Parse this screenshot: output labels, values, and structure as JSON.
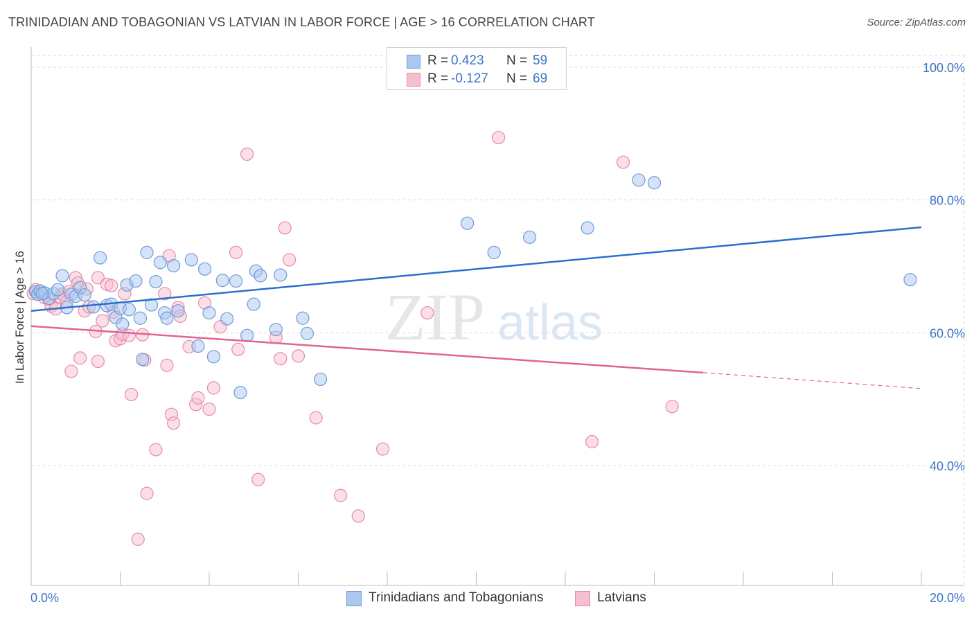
{
  "title": "TRINIDADIAN AND TOBAGONIAN VS LATVIAN IN LABOR FORCE | AGE > 16 CORRELATION CHART",
  "source": "Source: ZipAtlas.com",
  "watermark": {
    "zip": "ZIP",
    "atlas": "atlas"
  },
  "legend_top": {
    "rows": [
      {
        "r_key": "R =",
        "r_value": "0.423",
        "n_key": "N =",
        "n_value": "59"
      },
      {
        "r_key": "R =",
        "r_value": "-0.127",
        "n_key": "N =",
        "n_value": "69"
      }
    ]
  },
  "colors": {
    "blue_fill": "#a9c7ef",
    "blue_stroke": "#6d9ad8",
    "blue_line": "#2a6fce",
    "pink_fill": "#f6bfd0",
    "pink_stroke": "#e889a8",
    "pink_line": "#e0648f",
    "grid": "#d9d9d9",
    "tick_text": "#3b74c4"
  },
  "chart_data": {
    "type": "scatter",
    "title": "TRINIDADIAN AND TOBAGONIAN VS LATVIAN IN LABOR FORCE | AGE > 16 CORRELATION CHART",
    "xlabel": "",
    "ylabel": "In Labor Force | Age > 16",
    "xlim": [
      0,
      20
    ],
    "ylim": [
      20,
      100
    ],
    "x_tick_labels": [
      "0.0%",
      "20.0%"
    ],
    "y_ticks": [
      40,
      60,
      80,
      100
    ],
    "y_tick_labels": [
      "40.0%",
      "60.0%",
      "80.0%",
      "100.0%"
    ],
    "grid": true,
    "legend_position": "bottom-center",
    "series": [
      {
        "name": "Trinidadians and Tobagonians",
        "r": 0.423,
        "n": 59,
        "trend": {
          "x": [
            0,
            20
          ],
          "y": [
            63.3,
            75.9
          ]
        },
        "points": [
          [
            0.1,
            66.2
          ],
          [
            0.15,
            65.8
          ],
          [
            0.2,
            66.3
          ],
          [
            0.3,
            66.0
          ],
          [
            0.4,
            65.2
          ],
          [
            0.5,
            65.9
          ],
          [
            0.6,
            66.5
          ],
          [
            0.7,
            68.6
          ],
          [
            0.8,
            63.8
          ],
          [
            0.9,
            65.8
          ],
          [
            1.0,
            65.5
          ],
          [
            1.1,
            66.8
          ],
          [
            1.2,
            65.7
          ],
          [
            1.4,
            63.9
          ],
          [
            1.55,
            71.3
          ],
          [
            1.7,
            64.1
          ],
          [
            1.8,
            64.3
          ],
          [
            1.9,
            62.3
          ],
          [
            2.0,
            63.7
          ],
          [
            2.05,
            61.3
          ],
          [
            2.15,
            67.2
          ],
          [
            2.2,
            63.5
          ],
          [
            2.35,
            67.8
          ],
          [
            2.45,
            62.2
          ],
          [
            2.5,
            56.0
          ],
          [
            2.6,
            72.1
          ],
          [
            2.7,
            64.2
          ],
          [
            2.8,
            67.7
          ],
          [
            2.9,
            70.6
          ],
          [
            3.0,
            63.0
          ],
          [
            3.05,
            62.2
          ],
          [
            3.2,
            70.1
          ],
          [
            3.3,
            63.3
          ],
          [
            3.6,
            71.0
          ],
          [
            3.75,
            58.0
          ],
          [
            3.9,
            69.6
          ],
          [
            4.0,
            63.0
          ],
          [
            4.1,
            56.4
          ],
          [
            4.3,
            67.9
          ],
          [
            4.4,
            62.1
          ],
          [
            4.6,
            67.8
          ],
          [
            4.7,
            51.0
          ],
          [
            4.85,
            59.6
          ],
          [
            5.0,
            64.3
          ],
          [
            5.05,
            69.3
          ],
          [
            5.15,
            68.6
          ],
          [
            5.5,
            60.5
          ],
          [
            5.6,
            68.7
          ],
          [
            6.1,
            62.2
          ],
          [
            6.2,
            59.9
          ],
          [
            6.5,
            53.0
          ],
          [
            9.8,
            76.5
          ],
          [
            10.4,
            72.1
          ],
          [
            11.2,
            74.4
          ],
          [
            12.5,
            75.8
          ],
          [
            13.65,
            83.0
          ],
          [
            14.0,
            82.6
          ],
          [
            19.75,
            68.0
          ],
          [
            0.25,
            65.9
          ]
        ]
      },
      {
        "name": "Latvians",
        "r": -0.127,
        "n": 69,
        "trend": {
          "x": [
            0,
            15.1
          ],
          "y": [
            61.0,
            54.0
          ]
        },
        "trend_dashed": {
          "x": [
            15.1,
            20
          ],
          "y": [
            54.0,
            51.6
          ]
        },
        "points": [
          [
            0.05,
            65.9
          ],
          [
            0.1,
            66.5
          ],
          [
            0.2,
            66.3
          ],
          [
            0.3,
            65.3
          ],
          [
            0.4,
            65.0
          ],
          [
            0.45,
            64.0
          ],
          [
            0.55,
            63.6
          ],
          [
            0.65,
            65.4
          ],
          [
            0.7,
            65.8
          ],
          [
            0.8,
            64.7
          ],
          [
            0.85,
            66.2
          ],
          [
            0.9,
            54.2
          ],
          [
            1.0,
            68.3
          ],
          [
            1.05,
            67.5
          ],
          [
            1.1,
            56.2
          ],
          [
            1.2,
            63.3
          ],
          [
            1.25,
            66.6
          ],
          [
            1.3,
            63.9
          ],
          [
            1.5,
            68.3
          ],
          [
            1.5,
            55.7
          ],
          [
            1.6,
            61.8
          ],
          [
            1.7,
            67.3
          ],
          [
            1.8,
            67.1
          ],
          [
            1.85,
            63.1
          ],
          [
            1.9,
            58.8
          ],
          [
            2.0,
            59.1
          ],
          [
            2.05,
            59.8
          ],
          [
            2.1,
            65.9
          ],
          [
            2.2,
            59.6
          ],
          [
            2.25,
            50.7
          ],
          [
            2.4,
            28.9
          ],
          [
            2.5,
            59.7
          ],
          [
            2.55,
            55.9
          ],
          [
            2.6,
            35.8
          ],
          [
            2.8,
            42.4
          ],
          [
            3.0,
            65.9
          ],
          [
            3.05,
            55.1
          ],
          [
            3.1,
            71.6
          ],
          [
            3.15,
            47.7
          ],
          [
            3.2,
            46.4
          ],
          [
            3.3,
            63.8
          ],
          [
            3.35,
            62.5
          ],
          [
            3.55,
            57.9
          ],
          [
            3.7,
            49.2
          ],
          [
            3.75,
            50.2
          ],
          [
            3.9,
            64.5
          ],
          [
            4.0,
            48.5
          ],
          [
            4.1,
            51.7
          ],
          [
            4.25,
            60.9
          ],
          [
            4.6,
            72.1
          ],
          [
            4.65,
            57.5
          ],
          [
            4.85,
            86.9
          ],
          [
            5.1,
            37.9
          ],
          [
            5.5,
            59.3
          ],
          [
            5.6,
            56.1
          ],
          [
            5.7,
            75.8
          ],
          [
            5.8,
            71.0
          ],
          [
            6.0,
            56.5
          ],
          [
            6.4,
            47.2
          ],
          [
            6.95,
            35.5
          ],
          [
            7.35,
            32.4
          ],
          [
            7.9,
            42.5
          ],
          [
            8.9,
            63.0
          ],
          [
            10.5,
            89.4
          ],
          [
            12.6,
            43.6
          ],
          [
            13.3,
            85.7
          ],
          [
            14.4,
            48.9
          ],
          [
            0.15,
            65.8
          ],
          [
            1.45,
            60.2
          ]
        ]
      }
    ]
  },
  "legend_bottom": {
    "items": [
      {
        "label": "Trinidadians and Tobagonians"
      },
      {
        "label": "Latvians"
      }
    ]
  }
}
